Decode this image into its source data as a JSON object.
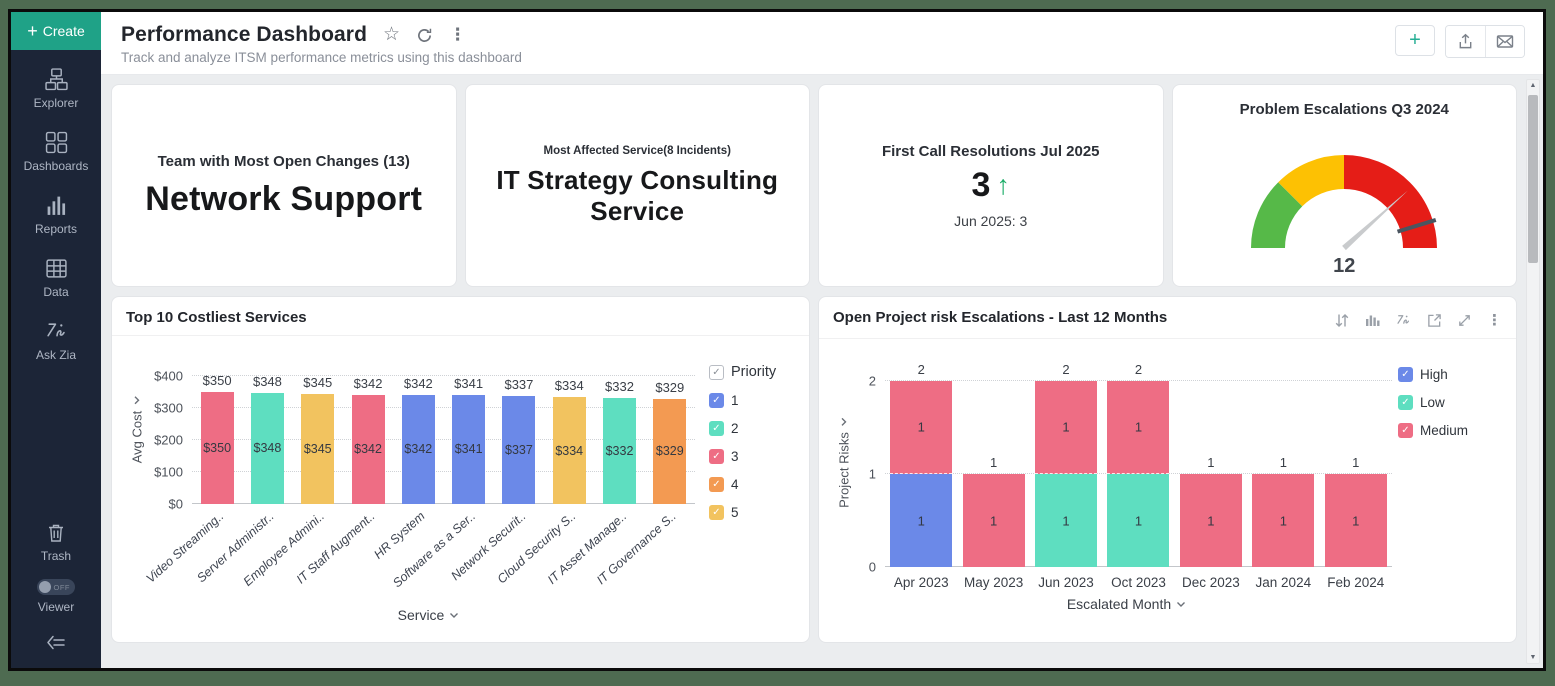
{
  "colors": {
    "accent_teal": "#1fa287",
    "sidebar_bg": "#1c2537",
    "content_bg": "#ebedef",
    "trend_up_green": "#1fae6a"
  },
  "sidebar": {
    "create_label": "Create",
    "items": [
      {
        "label": "Explorer",
        "icon": "explorer-icon"
      },
      {
        "label": "Dashboards",
        "icon": "dashboards-icon"
      },
      {
        "label": "Reports",
        "icon": "reports-icon"
      },
      {
        "label": "Data",
        "icon": "data-icon"
      },
      {
        "label": "Ask Zia",
        "icon": "ask-zia-icon"
      }
    ],
    "trash_label": "Trash",
    "viewer_label": "Viewer",
    "viewer_toggle": "OFF"
  },
  "header": {
    "title": "Performance Dashboard",
    "subtitle": "Track and analyze ITSM performance metrics using this dashboard",
    "title_icons": [
      "star-icon",
      "refresh-icon",
      "more-vertical-icon"
    ],
    "action_icons": [
      "add-icon",
      "export-icon",
      "email-icon"
    ]
  },
  "kpi_cards": [
    {
      "title": "Team with Most Open Changes (13)",
      "value": "Network Support"
    },
    {
      "title": "Most Affected Service(8 Incidents)",
      "value": "IT Strategy Consulting Service"
    },
    {
      "title": "First Call Resolutions Jul 2025",
      "value": "3",
      "trend": "up",
      "secondary": "Jun 2025: 3"
    }
  ],
  "panel_toolbar_icons": [
    "sort-icon",
    "chart-switch-icon",
    "zia-icon",
    "open-in-new-icon",
    "expand-icon",
    "more-vertical-icon"
  ],
  "chart_data": [
    {
      "id": "gauge",
      "type": "gauge",
      "title": "Problem Escalations Q3 2024",
      "value": 12,
      "value_label": "12",
      "segments": [
        {
          "color": "#56b948",
          "start_deg": 180,
          "end_deg": 135
        },
        {
          "color": "#fdc103",
          "start_deg": 135,
          "end_deg": 90
        },
        {
          "color": "#e51d17",
          "start_deg": 90,
          "end_deg": 0
        }
      ],
      "needle_deg": 42,
      "threshold_deg": 17,
      "needle_color": "#c9cbcd",
      "threshold_color": "#4a5560"
    },
    {
      "id": "costliest-services",
      "type": "bar",
      "title": "Top 10 Costliest Services",
      "xlabel": "Service",
      "ylabel": "Avg Cost",
      "ylim": [
        0,
        400
      ],
      "ytick_values": [
        0,
        100,
        200,
        300,
        400
      ],
      "ytick_labels": [
        "$0",
        "$100",
        "$200",
        "$300",
        "$400"
      ],
      "grid": "dotted horizontal",
      "legend_title": "Priority",
      "legend_position": "right",
      "legend": [
        {
          "label": "1",
          "color": "#6b89e8"
        },
        {
          "label": "2",
          "color": "#5edec0"
        },
        {
          "label": "3",
          "color": "#ee6d84"
        },
        {
          "label": "4",
          "color": "#f39a52"
        },
        {
          "label": "5",
          "color": "#f2c35f"
        }
      ],
      "categories": [
        "Video Streaming..",
        "Server Administr..",
        "Employee Admini..",
        "IT Staff Augment..",
        "HR System",
        "Software as a Ser..",
        "Network Securit..",
        "Cloud Security S..",
        "IT Asset Manage..",
        "IT Governance S.."
      ],
      "values": [
        350,
        348,
        345,
        342,
        342,
        341,
        337,
        334,
        332,
        329
      ],
      "value_labels": [
        "$350",
        "$348",
        "$345",
        "$342",
        "$342",
        "$341",
        "$337",
        "$334",
        "$332",
        "$329"
      ],
      "priorities": [
        "3",
        "2",
        "5",
        "3",
        "1",
        "1",
        "1",
        "5",
        "2",
        "4"
      ]
    },
    {
      "id": "project-risk-escalations",
      "type": "stacked_bar",
      "title": "Open Project risk Escalations - Last 12 Months",
      "xlabel": "Escalated Month",
      "ylabel": "Project Risks",
      "ylim": [
        0,
        2
      ],
      "ytick_values": [
        0,
        1,
        2
      ],
      "ytick_labels": [
        "0",
        "1",
        "2"
      ],
      "grid": "dotted horizontal",
      "legend_position": "top-right",
      "categories": [
        "Apr 2023",
        "May 2023",
        "Jun 2023",
        "Oct 2023",
        "Dec 2023",
        "Jan 2024",
        "Feb 2024"
      ],
      "series": [
        {
          "name": "High",
          "color": "#6b89e8",
          "values": [
            1,
            0,
            0,
            0,
            0,
            0,
            0
          ]
        },
        {
          "name": "Low",
          "color": "#5edec0",
          "values": [
            0,
            0,
            1,
            1,
            0,
            0,
            0
          ]
        },
        {
          "name": "Medium",
          "color": "#ee6d84",
          "values": [
            1,
            1,
            1,
            1,
            1,
            1,
            1
          ]
        }
      ],
      "totals": [
        2,
        1,
        2,
        2,
        1,
        1,
        1
      ]
    }
  ]
}
